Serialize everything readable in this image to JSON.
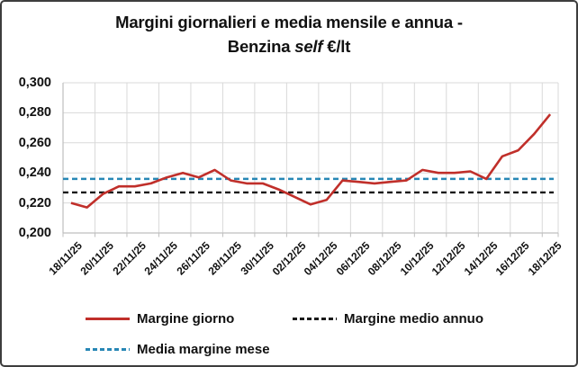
{
  "window": {
    "background": "#ffffff",
    "border_color": "#3d3d3d"
  },
  "title": {
    "line1": "Margini giornalieri e media mensile e annua -",
    "line2_prefix": "Benzina ",
    "line2_italic": "self",
    "line2_suffix": " €/lt"
  },
  "colors": {
    "daily_line": "#c02f2a",
    "monthly_avg_line": "#2787b5",
    "annual_avg_line": "#1a1a1a",
    "gridline": "#d9d9d9",
    "axis": "#bfbfbf",
    "text": "#111111"
  },
  "chart_data": {
    "type": "line",
    "title": "Margini giornalieri e media mensile e annua - Benzina self €/lt",
    "ylabel": "",
    "xlabel": "",
    "ylim": [
      0.2,
      0.3
    ],
    "grid": true,
    "legend_position": "bottom",
    "y_tick_labels": [
      "0,300",
      "0,280",
      "0,260",
      "0,240",
      "0,220",
      "0,200"
    ],
    "x_tick_labels": [
      "18/11/25",
      "20/11/25",
      "22/11/25",
      "24/11/25",
      "26/11/25",
      "28/11/25",
      "30/11/25",
      "02/12/25",
      "04/12/25",
      "06/12/25",
      "08/12/25",
      "10/12/25",
      "12/12/25",
      "14/12/25",
      "16/12/25",
      "18/12/25"
    ],
    "x": [
      "18/11/25",
      "19/11/25",
      "20/11/25",
      "21/11/25",
      "22/11/25",
      "23/11/25",
      "24/11/25",
      "25/11/25",
      "26/11/25",
      "27/11/25",
      "28/11/25",
      "29/11/25",
      "30/11/25",
      "01/12/25",
      "02/12/25",
      "03/12/25",
      "04/12/25",
      "05/12/25",
      "06/12/25",
      "07/12/25",
      "08/12/25",
      "09/12/25",
      "10/12/25",
      "11/12/25",
      "12/12/25",
      "13/12/25",
      "14/12/25",
      "15/12/25",
      "16/12/25",
      "17/12/25",
      "18/12/25"
    ],
    "series": [
      {
        "name": "Margine giorno",
        "style": "solid",
        "values": [
          0.22,
          0.217,
          0.226,
          0.231,
          0.231,
          0.233,
          0.237,
          0.24,
          0.237,
          0.242,
          0.235,
          0.233,
          0.233,
          0.229,
          0.224,
          0.219,
          0.222,
          0.235,
          0.234,
          0.233,
          0.234,
          0.235,
          0.242,
          0.24,
          0.24,
          0.241,
          0.236,
          0.251,
          0.255,
          0.266,
          0.279
        ]
      },
      {
        "name": "Margine medio annuo",
        "style": "dashed",
        "constant": 0.227
      },
      {
        "name": "Media margine mese",
        "style": "dashed",
        "constant": 0.236
      }
    ]
  },
  "legend": {
    "items": [
      {
        "label": "Margine giorno"
      },
      {
        "label": "Margine medio annuo"
      },
      {
        "label": "Media margine mese"
      }
    ]
  }
}
